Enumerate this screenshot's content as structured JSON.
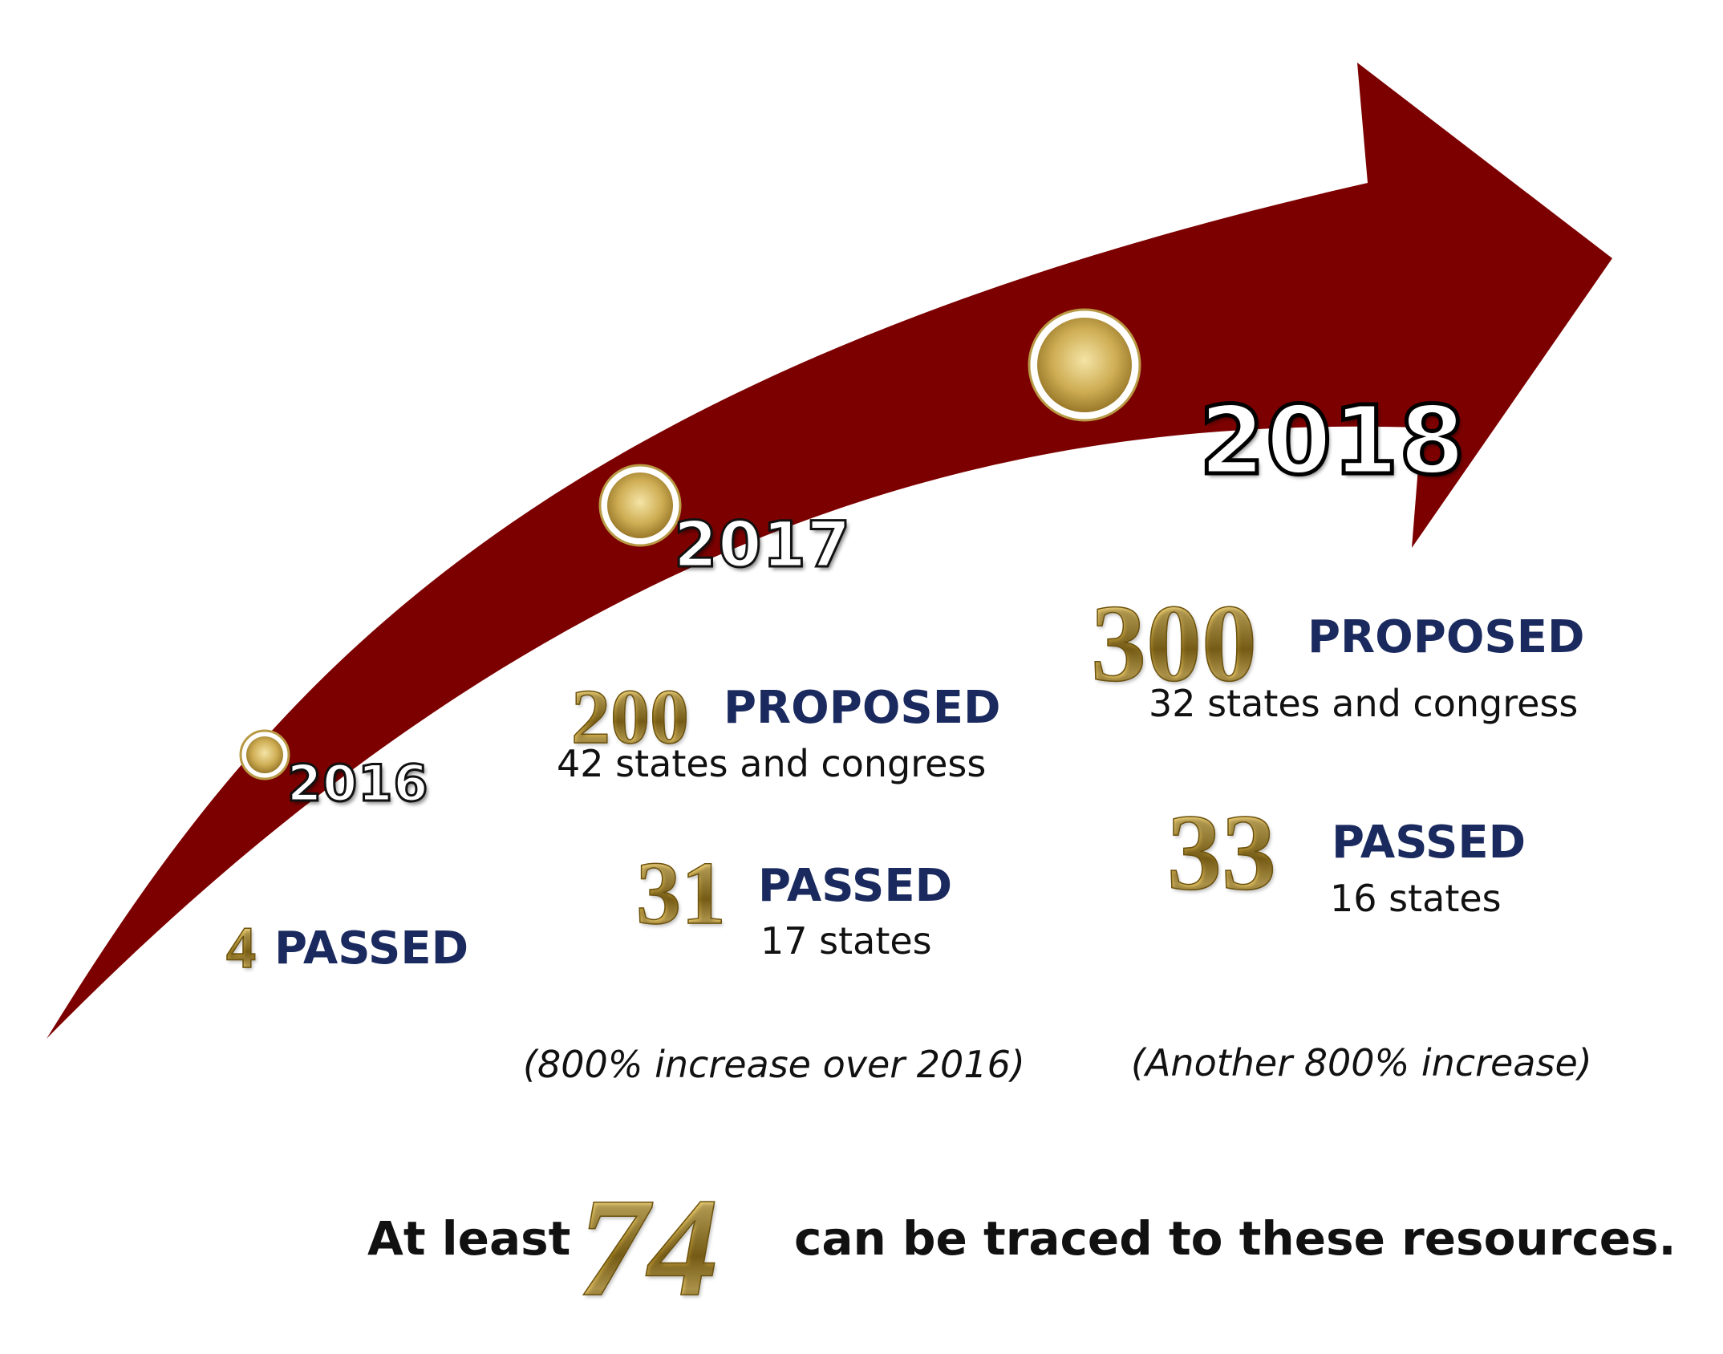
{
  "timeline": [
    {
      "year": "2016",
      "passed": {
        "number": "4",
        "label": "PASSED"
      }
    },
    {
      "year": "2017",
      "proposed": {
        "number": "200",
        "label": "PROPOSED",
        "detail": "42 states and congress"
      },
      "passed": {
        "number": "31",
        "label": "PASSED",
        "detail": "17 states"
      },
      "note": "(800% increase over 2016)"
    },
    {
      "year": "2018",
      "proposed": {
        "number": "300",
        "label": "PROPOSED",
        "detail": "32 states and congress"
      },
      "passed": {
        "number": "33",
        "label": "PASSED",
        "detail": "16 states"
      },
      "note": "(Another 800% increase)"
    }
  ],
  "footer": {
    "prefix": "At least",
    "number": "74",
    "suffix": "can be traced to these resources."
  },
  "colors": {
    "arrow": "#7d0000",
    "navy_text": "#1a2a5e",
    "gold": "#c9a53c"
  }
}
